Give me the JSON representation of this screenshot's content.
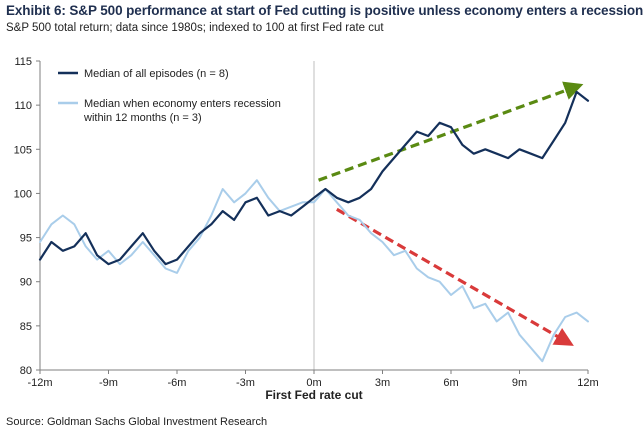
{
  "header": {
    "title": "Exhibit 6: S&P 500 performance at start of Fed cutting is positive unless economy enters a recession",
    "subtitle": "S&P 500 total return; data since 1980s; indexed to 100 at first Fed rate cut"
  },
  "footer": {
    "source": "Source: Goldman Sachs Global Investment Research"
  },
  "colors": {
    "all_episodes": "#14305a",
    "recession": "#a9cdea",
    "up_arrow": "#5a8a12",
    "down_arrow": "#d93a3a",
    "zero_line": "#bfbfbf",
    "axis": "#7f7f7f"
  },
  "chart_data": {
    "type": "line",
    "title": "",
    "xlabel": "First Fed rate cut",
    "ylabel": "",
    "xlim": [
      -12,
      12
    ],
    "ylim": [
      80,
      115
    ],
    "x_ticks": [
      -12,
      -9,
      -6,
      -3,
      0,
      3,
      6,
      9,
      12
    ],
    "x_tick_labels": [
      "-12m",
      "-9m",
      "-6m",
      "-3m",
      "0m",
      "3m",
      "6m",
      "9m",
      "12m"
    ],
    "y_ticks": [
      80,
      85,
      90,
      95,
      100,
      105,
      110,
      115
    ],
    "y_tick_labels": [
      "80",
      "85",
      "90",
      "95",
      "100",
      "105",
      "110",
      "115"
    ],
    "grid": false,
    "legend_position": "top-left",
    "x_unit": "months relative to first Fed rate cut",
    "series": [
      {
        "name": "Median of all episodes (n = 8)",
        "legend_lines": [
          "Median of all episodes (n = 8)"
        ],
        "color": "#14305a",
        "points": [
          [
            -12.0,
            92.5
          ],
          [
            -11.5,
            94.5
          ],
          [
            -11.0,
            93.5
          ],
          [
            -10.5,
            94.0
          ],
          [
            -10.0,
            95.5
          ],
          [
            -9.5,
            93.0
          ],
          [
            -9.0,
            92.0
          ],
          [
            -8.5,
            92.5
          ],
          [
            -8.0,
            94.0
          ],
          [
            -7.5,
            95.5
          ],
          [
            -7.0,
            93.5
          ],
          [
            -6.5,
            92.0
          ],
          [
            -6.0,
            92.5
          ],
          [
            -5.5,
            94.0
          ],
          [
            -5.0,
            95.5
          ],
          [
            -4.5,
            96.5
          ],
          [
            -4.0,
            98.0
          ],
          [
            -3.5,
            97.0
          ],
          [
            -3.0,
            99.0
          ],
          [
            -2.5,
            99.5
          ],
          [
            -2.0,
            97.5
          ],
          [
            -1.5,
            98.0
          ],
          [
            -1.0,
            97.5
          ],
          [
            -0.5,
            98.5
          ],
          [
            0.0,
            99.5
          ],
          [
            0.5,
            100.5
          ],
          [
            1.0,
            99.5
          ],
          [
            1.5,
            99.0
          ],
          [
            2.0,
            99.5
          ],
          [
            2.5,
            100.5
          ],
          [
            3.0,
            102.5
          ],
          [
            3.5,
            104.0
          ],
          [
            4.0,
            105.5
          ],
          [
            4.5,
            107.0
          ],
          [
            5.0,
            106.5
          ],
          [
            5.5,
            108.0
          ],
          [
            6.0,
            107.5
          ],
          [
            6.5,
            105.5
          ],
          [
            7.0,
            104.5
          ],
          [
            7.5,
            105.0
          ],
          [
            8.0,
            104.5
          ],
          [
            8.5,
            104.0
          ],
          [
            9.0,
            105.0
          ],
          [
            9.5,
            104.5
          ],
          [
            10.0,
            104.0
          ],
          [
            10.5,
            106.0
          ],
          [
            11.0,
            108.0
          ],
          [
            11.5,
            111.5
          ],
          [
            12.0,
            110.5
          ]
        ]
      },
      {
        "name": "Median when economy enters recession within 12 months (n = 3)",
        "legend_lines": [
          "Median when economy enters recession",
          "within 12 months (n = 3)"
        ],
        "color": "#a9cdea",
        "points": [
          [
            -12.0,
            94.5
          ],
          [
            -11.5,
            96.5
          ],
          [
            -11.0,
            97.5
          ],
          [
            -10.5,
            96.5
          ],
          [
            -10.0,
            94.0
          ],
          [
            -9.5,
            92.5
          ],
          [
            -9.0,
            93.5
          ],
          [
            -8.5,
            92.0
          ],
          [
            -8.0,
            93.0
          ],
          [
            -7.5,
            94.5
          ],
          [
            -7.0,
            93.0
          ],
          [
            -6.5,
            91.5
          ],
          [
            -6.0,
            91.0
          ],
          [
            -5.5,
            93.5
          ],
          [
            -5.0,
            95.0
          ],
          [
            -4.5,
            97.5
          ],
          [
            -4.0,
            100.5
          ],
          [
            -3.5,
            99.0
          ],
          [
            -3.0,
            100.0
          ],
          [
            -2.5,
            101.5
          ],
          [
            -2.0,
            99.5
          ],
          [
            -1.5,
            98.0
          ],
          [
            -1.0,
            98.5
          ],
          [
            -0.5,
            99.0
          ],
          [
            0.0,
            99.0
          ],
          [
            0.5,
            100.5
          ],
          [
            1.0,
            99.0
          ],
          [
            1.5,
            97.5
          ],
          [
            2.0,
            97.0
          ],
          [
            2.5,
            95.5
          ],
          [
            3.0,
            94.5
          ],
          [
            3.5,
            93.0
          ],
          [
            4.0,
            93.5
          ],
          [
            4.5,
            91.5
          ],
          [
            5.0,
            90.5
          ],
          [
            5.5,
            90.0
          ],
          [
            6.0,
            88.5
          ],
          [
            6.5,
            89.5
          ],
          [
            7.0,
            87.0
          ],
          [
            7.5,
            87.5
          ],
          [
            8.0,
            85.5
          ],
          [
            8.5,
            86.5
          ],
          [
            9.0,
            84.0
          ],
          [
            9.5,
            82.5
          ],
          [
            10.0,
            81.0
          ],
          [
            10.5,
            84.0
          ],
          [
            11.0,
            86.0
          ],
          [
            11.5,
            86.5
          ],
          [
            12.0,
            85.5
          ]
        ]
      }
    ],
    "annotations": [
      {
        "type": "dashed-arrow",
        "color": "#5a8a12",
        "from": [
          0.2,
          101.5
        ],
        "to": [
          11.6,
          112.2
        ]
      },
      {
        "type": "dashed-arrow",
        "color": "#d93a3a",
        "from": [
          1.0,
          98.2
        ],
        "to": [
          11.2,
          83.0
        ]
      }
    ]
  }
}
